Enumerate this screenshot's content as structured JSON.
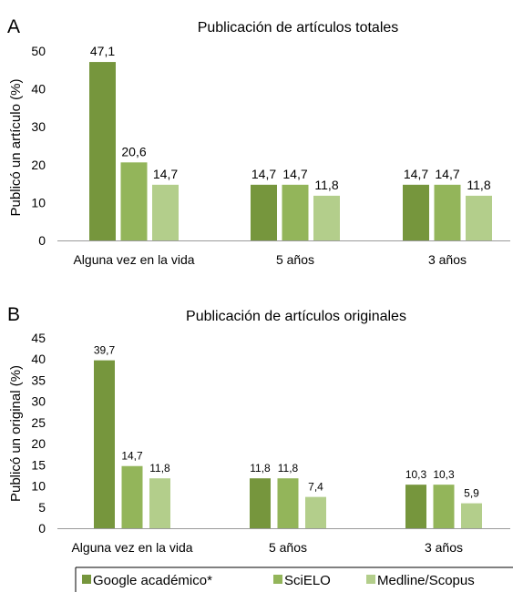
{
  "chart_data": [
    {
      "type": "bar",
      "panel": "A",
      "title": "Publicación de artículos totales",
      "xlabel": "",
      "ylabel": "Publicó un artículo (%)",
      "categories": [
        "Alguna vez en la vida",
        "5 años",
        "3 años"
      ],
      "ylim": [
        0,
        50
      ],
      "yticks": [
        0,
        10,
        20,
        30,
        40,
        50
      ],
      "value_labels": true,
      "series": [
        {
          "name": "Google académico*",
          "values": [
            47.1,
            14.7,
            14.7
          ],
          "labels": [
            "47,1",
            "14,7",
            "14,7"
          ],
          "color": "#76963d"
        },
        {
          "name": "SciELO",
          "values": [
            20.6,
            14.7,
            14.7
          ],
          "labels": [
            "20,6",
            "14,7",
            "14,7"
          ],
          "color": "#93b55a"
        },
        {
          "name": "Medline/Scopus",
          "values": [
            14.7,
            11.8,
            11.8
          ],
          "labels": [
            "14,7",
            "11,8",
            "11,8"
          ],
          "color": "#b3ce8b"
        }
      ]
    },
    {
      "type": "bar",
      "panel": "B",
      "title": "Publicación de artículos originales",
      "xlabel": "",
      "ylabel": "Publicó un original (%)",
      "categories": [
        "Alguna vez en la vida",
        "5 años",
        "3 años"
      ],
      "ylim": [
        0,
        45
      ],
      "yticks": [
        0,
        5,
        10,
        15,
        20,
        25,
        30,
        35,
        40,
        45
      ],
      "value_labels": true,
      "series": [
        {
          "name": "Google académico*",
          "values": [
            39.7,
            11.8,
            10.3
          ],
          "labels": [
            "39,7",
            "11,8",
            "10,3"
          ],
          "color": "#76963d"
        },
        {
          "name": "SciELO",
          "values": [
            14.7,
            11.8,
            10.3
          ],
          "labels": [
            "14,7",
            "11,8",
            "10,3"
          ],
          "color": "#93b55a"
        },
        {
          "name": "Medline/Scopus",
          "values": [
            11.8,
            7.4,
            5.9
          ],
          "labels": [
            "11,8",
            "7,4",
            "5,9"
          ],
          "color": "#b3ce8b"
        }
      ]
    }
  ],
  "legend": {
    "placement": "bottom",
    "items": [
      {
        "label": "Google académico*",
        "color": "#76963d"
      },
      {
        "label": "SciELO",
        "color": "#93b55a"
      },
      {
        "label": "Medline/Scopus",
        "color": "#b3ce8b"
      }
    ]
  }
}
